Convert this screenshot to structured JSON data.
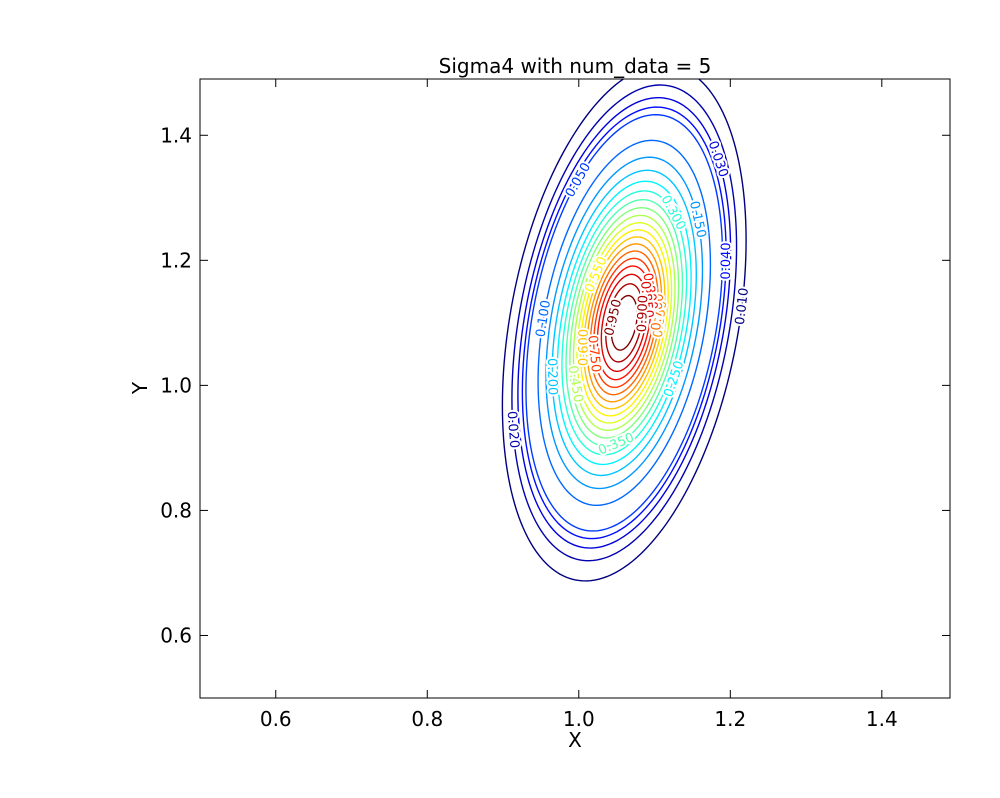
{
  "chart_data": {
    "type": "contour",
    "title": "Sigma4 with num_data = 5",
    "xlabel": "X",
    "ylabel": "Y",
    "xlim": [
      0.5,
      1.49
    ],
    "ylim": [
      0.5,
      1.49
    ],
    "xticks": [
      0.6,
      0.8,
      1.0,
      1.2,
      1.4
    ],
    "yticks": [
      0.6,
      0.8,
      1.0,
      1.2,
      1.4
    ],
    "xtick_labels": [
      "0.6",
      "0.8",
      "1.0",
      "1.2",
      "1.4"
    ],
    "ytick_labels": [
      "0.6",
      "0.8",
      "1.0",
      "1.2",
      "1.4"
    ],
    "grid": false,
    "colormap": "jet",
    "distribution": {
      "center_x": 1.06,
      "center_y": 1.1,
      "sigma_x": 0.053,
      "sigma_y": 0.136,
      "correlation": 0.32
    },
    "levels": [
      0.01,
      0.02,
      0.03,
      0.04,
      0.05,
      0.1,
      0.15,
      0.2,
      0.25,
      0.3,
      0.35,
      0.4,
      0.45,
      0.5,
      0.55,
      0.6,
      0.65,
      0.7,
      0.75,
      0.8,
      0.85,
      0.9,
      0.95
    ],
    "contour_labels": [
      {
        "text": "0.010",
        "level": 0.01,
        "angle_deg": 345
      },
      {
        "text": "0.020",
        "level": 0.02,
        "angle_deg": 188
      },
      {
        "text": "0.030",
        "level": 0.03,
        "angle_deg": 28
      },
      {
        "text": "0.040",
        "level": 0.04,
        "angle_deg": 358
      },
      {
        "text": "0.050",
        "level": 0.05,
        "angle_deg": 118
      },
      {
        "text": "0.100",
        "level": 0.1,
        "angle_deg": 160
      },
      {
        "text": "0.150",
        "level": 0.15,
        "angle_deg": 20
      },
      {
        "text": "0.200",
        "level": 0.2,
        "angle_deg": 182
      },
      {
        "text": "0.250",
        "level": 0.25,
        "angle_deg": 318
      },
      {
        "text": "0.300",
        "level": 0.3,
        "angle_deg": 38
      },
      {
        "text": "0.350",
        "level": 0.35,
        "angle_deg": 262
      },
      {
        "text": "0.450",
        "level": 0.45,
        "angle_deg": 196
      },
      {
        "text": "0.550",
        "level": 0.55,
        "angle_deg": 130
      },
      {
        "text": "0.600",
        "level": 0.6,
        "angle_deg": 178
      },
      {
        "text": "0.650",
        "level": 0.65,
        "angle_deg": 344
      },
      {
        "text": "0.700",
        "level": 0.7,
        "angle_deg": 350
      },
      {
        "text": "0.750",
        "level": 0.75,
        "angle_deg": 190
      },
      {
        "text": "0.800",
        "level": 0.8,
        "angle_deg": 15
      },
      {
        "text": "0.850",
        "level": 0.85,
        "angle_deg": 10
      },
      {
        "text": "0.900",
        "level": 0.9,
        "angle_deg": 355
      },
      {
        "text": "0.950",
        "level": 0.95,
        "angle_deg": 150
      }
    ]
  }
}
